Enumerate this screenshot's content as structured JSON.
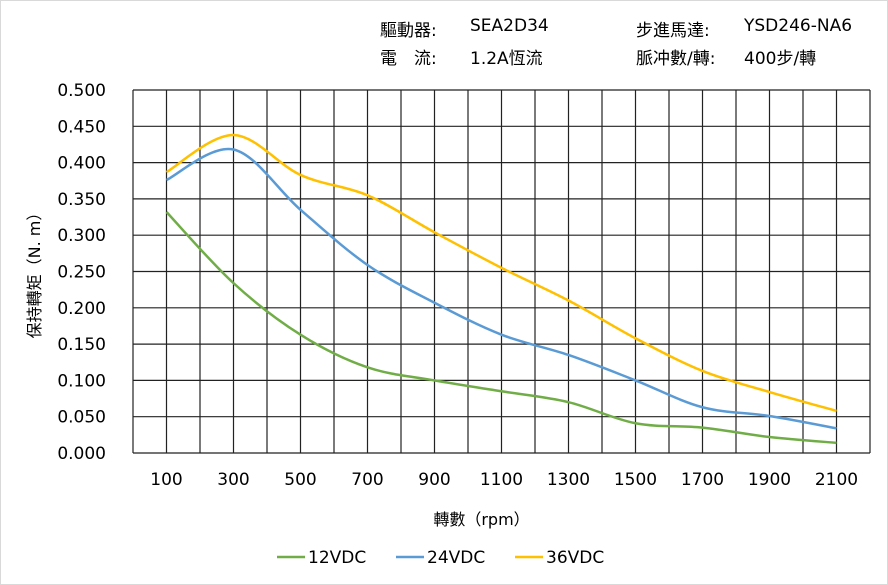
{
  "info": {
    "driver_label": "驅動器:",
    "driver_value": "SEA2D34",
    "motor_label": "步進馬達:",
    "motor_value": "YSD246-NA6",
    "current_label": "電　流:",
    "current_value": "1.2A恆流",
    "pulse_label": "脈冲數/轉:",
    "pulse_value": "400步/轉"
  },
  "chart_data": {
    "type": "line",
    "xlabel": "轉數（rpm）",
    "ylabel": "保持轉矩（N. m）",
    "xlim": [
      0,
      2200
    ],
    "ylim": [
      0,
      0.5
    ],
    "grid": true,
    "legend_placement": "bottom",
    "x_ticks": [
      100,
      300,
      500,
      700,
      900,
      1100,
      1300,
      1500,
      1700,
      1900,
      2100
    ],
    "y_ticks": [
      "0.000",
      "0.050",
      "0.100",
      "0.150",
      "0.200",
      "0.250",
      "0.300",
      "0.350",
      "0.400",
      "0.450",
      "0.500"
    ],
    "x": [
      100,
      300,
      500,
      700,
      900,
      1100,
      1300,
      1500,
      1700,
      1900,
      2100
    ],
    "series": [
      {
        "name": "12VDC",
        "color": "#70ad47",
        "values": [
          0.332,
          0.234,
          0.163,
          0.118,
          0.1,
          0.085,
          0.07,
          0.041,
          0.035,
          0.022,
          0.014
        ]
      },
      {
        "name": "24VDC",
        "color": "#5b9bd5",
        "values": [
          0.376,
          0.418,
          0.335,
          0.259,
          0.207,
          0.163,
          0.135,
          0.1,
          0.063,
          0.051,
          0.034
        ]
      },
      {
        "name": "36VDC",
        "color": "#ffc000",
        "values": [
          0.387,
          0.438,
          0.383,
          0.355,
          0.304,
          0.255,
          0.21,
          0.158,
          0.113,
          0.084,
          0.058
        ]
      }
    ]
  }
}
